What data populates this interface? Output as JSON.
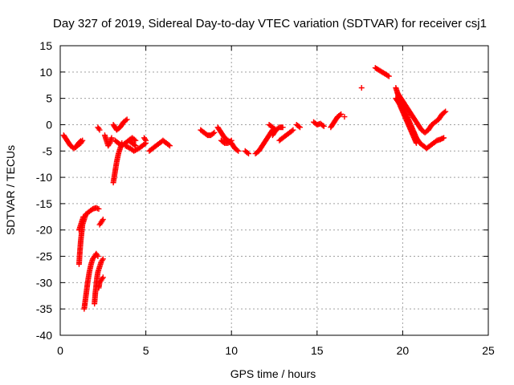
{
  "chart_data": {
    "type": "scatter",
    "title": "Day 327 of 2019, Sidereal Day-to-day VTEC variation (SDTVAR) for receiver csj1",
    "xlabel": "GPS time / hours",
    "ylabel": "SDTVAR / TECUs",
    "xlim": [
      0,
      25
    ],
    "ylim": [
      -40,
      15
    ],
    "xticks": [
      0,
      5,
      10,
      15,
      20,
      25
    ],
    "yticks": [
      -40,
      -35,
      -30,
      -25,
      -20,
      -15,
      -10,
      -5,
      0,
      5,
      10,
      15
    ],
    "grid": true,
    "marker": "plus",
    "color": "#ff0000",
    "segments": [
      [
        [
          0.2,
          -2.0
        ],
        [
          0.4,
          -3.0
        ],
        [
          0.6,
          -4.0
        ],
        [
          0.8,
          -4.5
        ],
        [
          1.0,
          -4.0
        ],
        [
          1.2,
          -3.5
        ],
        [
          1.3,
          -3.0
        ]
      ],
      [
        [
          0.9,
          -4.3
        ],
        [
          1.0,
          -3.8
        ],
        [
          1.1,
          -3.4
        ],
        [
          1.2,
          -3.1
        ]
      ],
      [
        [
          1.1,
          -20.0
        ],
        [
          1.2,
          -19.0
        ],
        [
          1.3,
          -18.0
        ],
        [
          1.35,
          -17.5
        ]
      ],
      [
        [
          1.1,
          -26.5
        ],
        [
          1.15,
          -24.0
        ],
        [
          1.2,
          -22.0
        ],
        [
          1.25,
          -20.5
        ],
        [
          1.3,
          -19.0
        ],
        [
          1.4,
          -18.0
        ],
        [
          1.5,
          -17.0
        ],
        [
          1.7,
          -16.5
        ],
        [
          1.9,
          -16.0
        ],
        [
          2.1,
          -15.8
        ],
        [
          2.25,
          -16.0
        ]
      ],
      [
        [
          1.4,
          -35.0
        ],
        [
          1.5,
          -32.5
        ],
        [
          1.6,
          -30.0
        ],
        [
          1.7,
          -28.0
        ],
        [
          1.8,
          -26.5
        ],
        [
          1.9,
          -25.5
        ],
        [
          2.0,
          -25.0
        ],
        [
          2.1,
          -24.5
        ],
        [
          2.2,
          -25.0
        ]
      ],
      [
        [
          2.0,
          -34.0
        ],
        [
          2.05,
          -32.0
        ],
        [
          2.1,
          -30.5
        ],
        [
          2.15,
          -29.0
        ],
        [
          2.2,
          -28.0
        ],
        [
          2.3,
          -27.0
        ],
        [
          2.4,
          -26.0
        ],
        [
          2.5,
          -25.5
        ]
      ],
      [
        [
          2.25,
          -31.0
        ],
        [
          2.3,
          -30.0
        ],
        [
          2.4,
          -29.5
        ],
        [
          2.5,
          -29.0
        ]
      ],
      [
        [
          2.3,
          -19.0
        ],
        [
          2.4,
          -18.5
        ],
        [
          2.5,
          -18.0
        ]
      ],
      [
        [
          2.2,
          -0.5
        ],
        [
          2.3,
          -1.0
        ]
      ],
      [
        [
          2.6,
          -2.0
        ],
        [
          2.7,
          -3.0
        ],
        [
          2.8,
          -4.0
        ],
        [
          2.9,
          -3.5
        ],
        [
          3.0,
          -2.5
        ]
      ],
      [
        [
          3.1,
          -11.0
        ],
        [
          3.2,
          -9.0
        ],
        [
          3.3,
          -7.0
        ],
        [
          3.4,
          -5.5
        ],
        [
          3.5,
          -4.5
        ],
        [
          3.6,
          -3.5
        ]
      ],
      [
        [
          3.1,
          0.0
        ],
        [
          3.3,
          -1.0
        ],
        [
          3.5,
          -0.5
        ],
        [
          3.7,
          0.5
        ],
        [
          3.9,
          1.0
        ]
      ],
      [
        [
          3.2,
          -3.0
        ],
        [
          3.4,
          -3.5
        ],
        [
          3.6,
          -4.0
        ],
        [
          3.8,
          -3.5
        ],
        [
          4.0,
          -3.0
        ],
        [
          4.2,
          -3.5
        ],
        [
          4.4,
          -4.0
        ]
      ],
      [
        [
          4.0,
          -3.0
        ],
        [
          4.2,
          -2.5
        ],
        [
          4.4,
          -3.0
        ]
      ],
      [
        [
          3.8,
          -4.0
        ],
        [
          4.1,
          -4.5
        ],
        [
          4.3,
          -5.0
        ],
        [
          4.6,
          -4.5
        ],
        [
          4.8,
          -4.0
        ],
        [
          5.0,
          -3.5
        ]
      ],
      [
        [
          4.9,
          -2.5
        ],
        [
          5.0,
          -3.0
        ]
      ],
      [
        [
          5.2,
          -5.0
        ],
        [
          5.4,
          -4.5
        ],
        [
          5.6,
          -4.0
        ],
        [
          5.8,
          -3.5
        ],
        [
          6.0,
          -3.0
        ],
        [
          6.2,
          -3.5
        ],
        [
          6.4,
          -4.0
        ]
      ],
      [
        [
          8.2,
          -1.0
        ],
        [
          8.4,
          -1.5
        ],
        [
          8.6,
          -2.0
        ],
        [
          8.8,
          -2.0
        ],
        [
          9.0,
          -1.5
        ]
      ],
      [
        [
          9.2,
          -0.5
        ],
        [
          9.4,
          -1.5
        ],
        [
          9.6,
          -2.5
        ],
        [
          9.8,
          -3.0
        ],
        [
          10.0,
          -3.5
        ],
        [
          10.2,
          -4.5
        ],
        [
          10.4,
          -5.0
        ]
      ],
      [
        [
          9.4,
          -3.0
        ],
        [
          9.6,
          -3.5
        ],
        [
          9.8,
          -3.5
        ],
        [
          10.0,
          -3.0
        ]
      ],
      [
        [
          10.8,
          -5.0
        ],
        [
          11.0,
          -5.5
        ]
      ],
      [
        [
          11.4,
          -5.5
        ],
        [
          11.6,
          -5.0
        ],
        [
          11.8,
          -4.0
        ],
        [
          12.0,
          -3.0
        ],
        [
          12.2,
          -2.0
        ],
        [
          12.4,
          -1.0
        ]
      ],
      [
        [
          12.4,
          -2.0
        ],
        [
          12.6,
          -1.0
        ],
        [
          12.8,
          -0.5
        ],
        [
          13.0,
          -0.5
        ]
      ],
      [
        [
          12.2,
          0.0
        ],
        [
          12.4,
          -0.5
        ],
        [
          12.6,
          -1.0
        ]
      ],
      [
        [
          12.8,
          -3.0
        ],
        [
          13.0,
          -2.5
        ],
        [
          13.2,
          -2.0
        ],
        [
          13.4,
          -1.5
        ],
        [
          13.6,
          -1.0
        ]
      ],
      [
        [
          13.8,
          0.0
        ],
        [
          14.0,
          -0.5
        ]
      ],
      [
        [
          14.8,
          0.5
        ],
        [
          15.0,
          0.0
        ],
        [
          15.2,
          0.2
        ],
        [
          15.4,
          -0.3
        ]
      ],
      [
        [
          15.8,
          -0.5
        ],
        [
          16.0,
          0.5
        ],
        [
          16.2,
          1.5
        ],
        [
          16.4,
          2.0
        ]
      ],
      [
        [
          16.6,
          1.5
        ]
      ],
      [
        [
          17.6,
          7.0
        ]
      ],
      [
        [
          18.4,
          10.8
        ],
        [
          18.6,
          10.4
        ],
        [
          18.8,
          10.0
        ],
        [
          19.0,
          9.6
        ],
        [
          19.2,
          9.2
        ]
      ],
      [
        [
          19.6,
          7.0
        ],
        [
          19.8,
          5.0
        ],
        [
          20.0,
          3.5
        ],
        [
          20.2,
          2.0
        ],
        [
          20.4,
          0.5
        ],
        [
          20.6,
          -1.0
        ],
        [
          20.8,
          -2.5
        ],
        [
          21.0,
          -3.5
        ],
        [
          21.2,
          -4.0
        ],
        [
          21.4,
          -4.5
        ],
        [
          21.6,
          -4.0
        ],
        [
          21.8,
          -3.5
        ],
        [
          22.0,
          -3.0
        ],
        [
          22.2,
          -2.8
        ],
        [
          22.4,
          -2.5
        ]
      ],
      [
        [
          19.7,
          6.0
        ],
        [
          19.9,
          5.0
        ],
        [
          20.1,
          4.0
        ],
        [
          20.3,
          3.0
        ],
        [
          20.5,
          2.0
        ],
        [
          20.7,
          1.0
        ],
        [
          20.9,
          0.0
        ],
        [
          21.1,
          -1.0
        ],
        [
          21.3,
          -1.5
        ],
        [
          21.5,
          -1.0
        ],
        [
          21.7,
          0.0
        ],
        [
          21.9,
          0.5
        ],
        [
          22.1,
          1.0
        ],
        [
          22.3,
          2.0
        ],
        [
          22.5,
          2.5
        ]
      ],
      [
        [
          19.6,
          5.0
        ],
        [
          19.8,
          4.0
        ],
        [
          20.0,
          2.5
        ],
        [
          20.2,
          1.0
        ],
        [
          20.4,
          -0.5
        ],
        [
          20.6,
          -2.0
        ],
        [
          20.8,
          -3.5
        ]
      ]
    ]
  }
}
